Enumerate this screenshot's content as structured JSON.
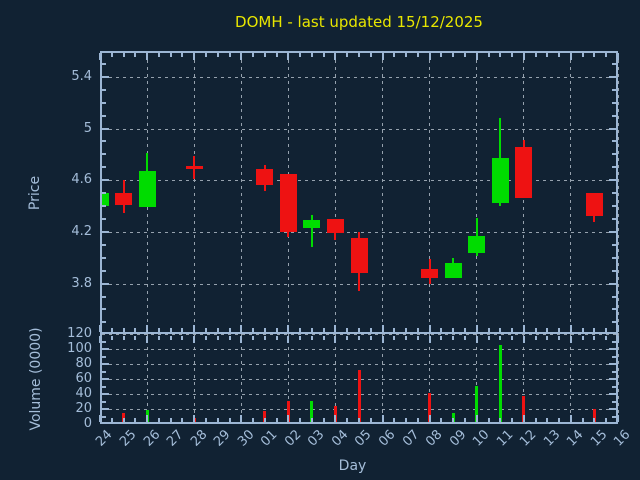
{
  "title": {
    "text": "DOMH - last updated 15/12/2025"
  },
  "xlabel": "Day",
  "colors": {
    "background": "#112233",
    "title": "#e8e600",
    "axis": "#9cb6d4",
    "tick_text": "#a4bdd9",
    "grid": "#96a2ae",
    "up": "#00dc00",
    "down": "#ee1212"
  },
  "chart_data": [
    {
      "type": "candlestick",
      "panel": "price",
      "ylabel": "Price",
      "ylim": [
        3.41,
        5.6
      ],
      "yticks": [
        5.4,
        5,
        4.6,
        4.2,
        3.8
      ],
      "ytick_labels": [
        "5.4",
        "5",
        "4.6",
        "4.2",
        "3.8"
      ],
      "x_categories": [
        "24",
        "25",
        "26",
        "27",
        "28",
        "29",
        "30",
        "01",
        "02",
        "03",
        "04",
        "05",
        "06",
        "07",
        "08",
        "09",
        "10",
        "11",
        "12",
        "13",
        "14",
        "15",
        "16"
      ],
      "x_grid_step": 2,
      "grid": true,
      "candles": [
        {
          "day": "24",
          "open": 4.4,
          "high": 4.5,
          "low": 4.4,
          "close": 4.5
        },
        {
          "day": "25",
          "open": 4.5,
          "high": 4.6,
          "low": 4.35,
          "close": 4.41
        },
        {
          "day": "26",
          "open": 4.39,
          "high": 4.81,
          "low": 4.39,
          "close": 4.67
        },
        {
          "day": "28",
          "open": 4.71,
          "high": 4.79,
          "low": 4.61,
          "close": 4.7
        },
        {
          "day": "01",
          "open": 4.69,
          "high": 4.72,
          "low": 4.52,
          "close": 4.56
        },
        {
          "day": "02",
          "open": 4.65,
          "high": 4.65,
          "low": 4.16,
          "close": 4.2
        },
        {
          "day": "03",
          "open": 4.23,
          "high": 4.33,
          "low": 4.08,
          "close": 4.29
        },
        {
          "day": "04",
          "open": 4.3,
          "high": 4.3,
          "low": 4.14,
          "close": 4.19
        },
        {
          "day": "05",
          "open": 4.15,
          "high": 4.2,
          "low": 3.74,
          "close": 3.88
        },
        {
          "day": "08",
          "open": 3.91,
          "high": 3.99,
          "low": 3.8,
          "close": 3.84
        },
        {
          "day": "09",
          "open": 3.84,
          "high": 4.0,
          "low": 3.84,
          "close": 3.96
        },
        {
          "day": "10",
          "open": 4.04,
          "high": 4.31,
          "low": 4.01,
          "close": 4.17
        },
        {
          "day": "11",
          "open": 4.42,
          "high": 5.08,
          "low": 4.4,
          "close": 4.77
        },
        {
          "day": "12",
          "open": 4.86,
          "high": 4.91,
          "low": 4.46,
          "close": 4.46
        },
        {
          "day": "15",
          "open": 4.5,
          "high": 4.5,
          "low": 4.28,
          "close": 4.32
        }
      ]
    },
    {
      "type": "bar",
      "panel": "volume",
      "ylabel": "Volume (0000)",
      "ylim": [
        0,
        120
      ],
      "yticks": [
        120,
        100,
        80,
        60,
        40,
        20,
        0
      ],
      "ytick_labels": [
        "120",
        "100",
        "80",
        "60",
        "40",
        "20",
        "0"
      ],
      "grid": true,
      "bars": [
        {
          "day": "25",
          "value": 15
        },
        {
          "day": "26",
          "value": 19
        },
        {
          "day": "28",
          "value": 8
        },
        {
          "day": "01",
          "value": 17
        },
        {
          "day": "02",
          "value": 31
        },
        {
          "day": "03",
          "value": 31
        },
        {
          "day": "04",
          "value": 24
        },
        {
          "day": "05",
          "value": 72
        },
        {
          "day": "08",
          "value": 42
        },
        {
          "day": "09",
          "value": 15
        },
        {
          "day": "10",
          "value": 51
        },
        {
          "day": "11",
          "value": 105
        },
        {
          "day": "12",
          "value": 38
        },
        {
          "day": "15",
          "value": 20
        }
      ]
    }
  ]
}
